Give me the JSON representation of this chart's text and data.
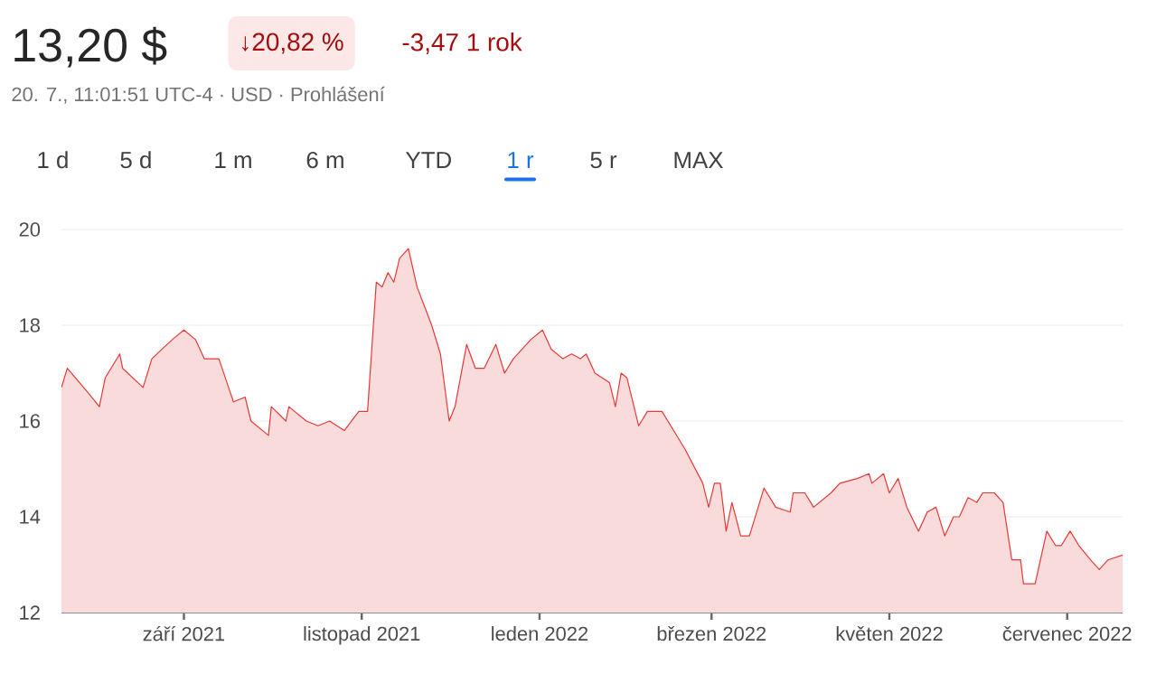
{
  "chart_data": {
    "type": "area",
    "title": "13,20 $",
    "subtitle": "20. 7., 11:01:51 UTC-4 · USD · Prohlášení",
    "annotations": [
      "↓20,82 %",
      "-3,47 1 rok",
      "1 d",
      "5 d",
      "1 m",
      "6 m",
      "YTD",
      "1 r",
      "5 r",
      "MAX"
    ],
    "x": [
      "2021-07-21",
      "2021-07-23",
      "2021-07-30",
      "2021-08-03",
      "2021-08-05",
      "2021-08-10",
      "2021-08-11",
      "2021-08-18",
      "2021-08-21",
      "2021-08-28",
      "2021-09-01",
      "2021-09-05",
      "2021-09-08",
      "2021-09-13",
      "2021-09-18",
      "2021-09-22",
      "2021-09-24",
      "2021-09-30",
      "2021-10-01",
      "2021-10-06",
      "2021-10-07",
      "2021-10-13",
      "2021-10-17",
      "2021-10-21",
      "2021-10-26",
      "2021-10-31",
      "2021-11-03",
      "2021-11-06",
      "2021-11-08",
      "2021-11-10",
      "2021-11-12",
      "2021-11-14",
      "2021-11-17",
      "2021-11-20",
      "2021-11-25",
      "2021-11-28",
      "2021-12-01",
      "2021-12-03",
      "2021-12-07",
      "2021-12-10",
      "2021-12-13",
      "2021-12-17",
      "2021-12-20",
      "2021-12-23",
      "2021-12-29",
      "2022-01-02",
      "2022-01-05",
      "2022-01-09",
      "2022-01-12",
      "2022-01-15",
      "2022-01-17",
      "2022-01-20",
      "2022-01-25",
      "2022-01-27",
      "2022-01-29",
      "2022-01-31",
      "2022-02-04",
      "2022-02-07",
      "2022-02-12",
      "2022-02-15",
      "2022-02-20",
      "2022-02-26",
      "2022-02-28",
      "2022-03-02",
      "2022-03-04",
      "2022-03-06",
      "2022-03-08",
      "2022-03-11",
      "2022-03-14",
      "2022-03-17",
      "2022-03-19",
      "2022-03-23",
      "2022-03-28",
      "2022-03-29",
      "2022-04-02",
      "2022-04-05",
      "2022-04-11",
      "2022-04-14",
      "2022-04-20",
      "2022-04-24",
      "2022-04-25",
      "2022-04-29",
      "2022-05-01",
      "2022-05-04",
      "2022-05-07",
      "2022-05-11",
      "2022-05-14",
      "2022-05-17",
      "2022-05-20",
      "2022-05-23",
      "2022-05-25",
      "2022-05-28",
      "2022-05-31",
      "2022-06-02",
      "2022-06-06",
      "2022-06-09",
      "2022-06-12",
      "2022-06-15",
      "2022-06-16",
      "2022-06-20",
      "2022-06-24",
      "2022-06-27",
      "2022-06-29",
      "2022-07-02",
      "2022-07-05",
      "2022-07-09",
      "2022-07-12",
      "2022-07-15",
      "2022-07-20"
    ],
    "series": [
      {
        "color": "#e53935",
        "values": [
          16.7,
          17.1,
          16.6,
          16.3,
          16.9,
          17.4,
          17.1,
          16.7,
          17.3,
          17.7,
          17.9,
          17.7,
          17.3,
          17.3,
          16.4,
          16.5,
          16.0,
          15.7,
          16.3,
          16.0,
          16.3,
          16.0,
          15.9,
          16.0,
          15.8,
          16.2,
          16.2,
          18.9,
          18.8,
          19.1,
          18.9,
          19.4,
          19.6,
          18.8,
          18.0,
          17.4,
          16.0,
          16.3,
          17.6,
          17.1,
          17.1,
          17.6,
          17.0,
          17.3,
          17.7,
          17.9,
          17.5,
          17.3,
          17.4,
          17.3,
          17.4,
          17.0,
          16.8,
          16.3,
          17.0,
          16.9,
          15.9,
          16.2,
          16.2,
          15.9,
          15.4,
          14.7,
          14.2,
          14.7,
          14.7,
          13.7,
          14.3,
          13.6,
          13.6,
          14.2,
          14.6,
          14.2,
          14.1,
          14.5,
          14.5,
          14.2,
          14.5,
          14.7,
          14.8,
          14.9,
          14.7,
          14.9,
          14.5,
          14.8,
          14.2,
          13.7,
          14.1,
          14.2,
          13.6,
          14.0,
          14.0,
          14.4,
          14.3,
          14.5,
          14.5,
          14.3,
          13.1,
          13.1,
          12.6,
          12.6,
          13.7,
          13.4,
          13.4,
          13.7,
          13.4,
          13.1,
          12.9,
          13.1,
          13.2
        ]
      }
    ],
    "xlim": [
      "2021-07-21",
      "2022-07-20"
    ],
    "xticks": [
      {
        "value": "2021-09-01",
        "label": "září 2021"
      },
      {
        "value": "2021-11-01",
        "label": "listopad 2021"
      },
      {
        "value": "2022-01-01",
        "label": "leden 2022"
      },
      {
        "value": "2022-03-01",
        "label": "březen 2022"
      },
      {
        "value": "2022-05-01",
        "label": "květen 2022"
      },
      {
        "value": "2022-07-01",
        "label": "červenec 2022"
      }
    ],
    "ylim": [
      12,
      20
    ],
    "yticks": [
      12,
      14,
      16,
      18,
      20
    ],
    "grid": "y"
  }
}
